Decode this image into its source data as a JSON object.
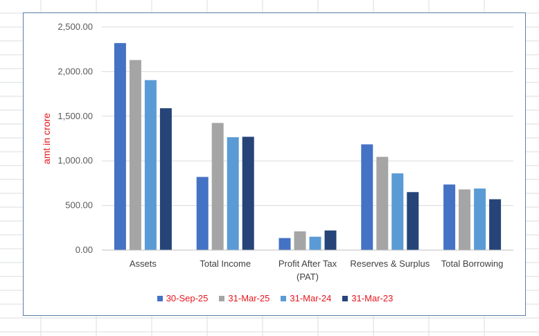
{
  "chart_data": {
    "type": "bar",
    "title": "",
    "xlabel": "",
    "ylabel": "amt in crore",
    "ylim": [
      0,
      2500
    ],
    "yticks": [
      "2,500.00",
      "2,000.00",
      "1,500.00",
      "1,000.00",
      "500.00",
      "0.00"
    ],
    "ytick_values": [
      2500,
      2000,
      1500,
      1000,
      500,
      0
    ],
    "grid": true,
    "legend_position": "bottom",
    "categories": [
      "Assets",
      "Total Income",
      "Profit After Tax (PAT)",
      "Reserves & Surplus",
      "Total Borrowing"
    ],
    "category_lines": [
      [
        "Assets"
      ],
      [
        "Total Income"
      ],
      [
        "Profit After Tax",
        "(PAT)"
      ],
      [
        "Reserves & Surplus"
      ],
      [
        "Total Borrowing"
      ]
    ],
    "series": [
      {
        "name": "30-Sep-25",
        "color": "#4472c4",
        "values": [
          2320,
          820,
          135,
          1185,
          735
        ]
      },
      {
        "name": "31-Mar-25",
        "color": "#a5a5a5",
        "values": [
          2130,
          1425,
          210,
          1045,
          680
        ]
      },
      {
        "name": "31-Mar-24",
        "color": "#5b9bd5",
        "values": [
          1905,
          1265,
          150,
          860,
          690
        ]
      },
      {
        "name": "31-Mar-23",
        "color": "#264478",
        "values": [
          1590,
          1270,
          220,
          650,
          570
        ]
      }
    ],
    "colors": {
      "ylabel": "#e8141b",
      "legend_text": "#e8141b",
      "ticks": "#595959",
      "grid": "#d9d9d9"
    }
  }
}
